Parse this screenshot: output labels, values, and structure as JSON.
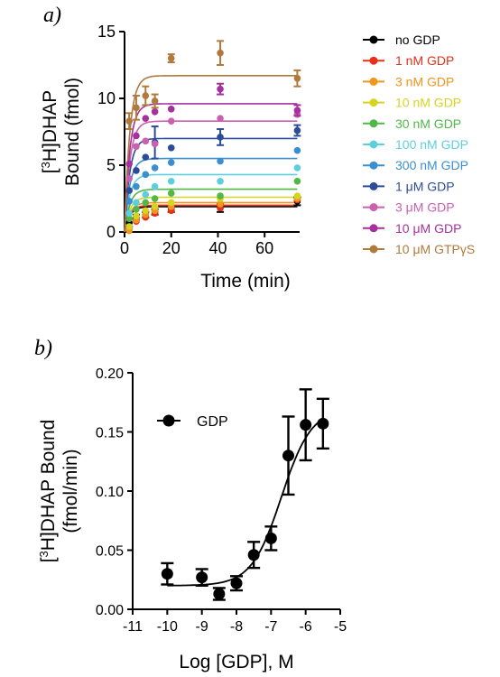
{
  "chart_data": [
    {
      "panel": "a)",
      "type": "scatter",
      "xlabel": "Time (min)",
      "ylabel": "[3H]DHAP Bound (fmol)",
      "ylabel_lines": [
        "[",
        "3",
        "H]DHAP",
        "Bound (fmol)"
      ],
      "xlim": [
        0,
        75
      ],
      "ylim": [
        0,
        15
      ],
      "xticks": [
        0,
        20,
        40,
        60
      ],
      "yticks": [
        0,
        5,
        10,
        15
      ],
      "grid": false,
      "legend_position": "right",
      "x": [
        2,
        5,
        9,
        13,
        20,
        41,
        74
      ],
      "series": [
        {
          "name": "no GDP",
          "color": "#000000",
          "values": [
            0.7,
            1.1,
            1.3,
            1.5,
            1.7,
            1.8,
            2.3
          ],
          "err": [
            0.3,
            0.2,
            0.2,
            0.2,
            0.2,
            0.3,
            0.3
          ],
          "plateau": 1.9
        },
        {
          "name": "1 nM GDP",
          "color": "#e8311a",
          "values": [
            0.3,
            0.8,
            1.1,
            1.4,
            1.6,
            1.8,
            2.4
          ],
          "plateau": 2.0
        },
        {
          "name": "3 nM GDP",
          "color": "#f2941d",
          "values": [
            0.1,
            0.9,
            1.3,
            1.6,
            1.9,
            2.1,
            2.5
          ],
          "plateau": 2.2
        },
        {
          "name": "10 nM GDP",
          "color": "#d6d41e",
          "values": [
            0.4,
            1.2,
            1.6,
            1.9,
            2.2,
            2.5,
            2.7
          ],
          "plateau": 2.6
        },
        {
          "name": "30 nM GDP",
          "color": "#51b848",
          "values": [
            1.0,
            1.7,
            2.2,
            2.5,
            2.9,
            2.7,
            3.8
          ],
          "plateau": 3.2
        },
        {
          "name": "100 nM GDP",
          "color": "#5ccfde",
          "values": [
            1.4,
            2.2,
            2.8,
            3.4,
            3.8,
            3.8,
            4.8
          ],
          "plateau": 4.3
        },
        {
          "name": "300 nM GDP",
          "color": "#3a8fd0",
          "values": [
            2.3,
            3.4,
            4.3,
            4.8,
            5.2,
            5.3,
            6.1
          ],
          "plateau": 5.5
        },
        {
          "name": "1 μM GDP",
          "color": "#2c4c9b",
          "values": [
            3.1,
            4.6,
            5.6,
            6.7,
            6.3,
            7.1,
            7.6
          ],
          "err": [
            0,
            0,
            0,
            1.2,
            0,
            0.6,
            0.4
          ],
          "plateau": 7.0
        },
        {
          "name": "3 μM GDP",
          "color": "#cb5fb0",
          "values": [
            4.0,
            6.4,
            6.8,
            6.6,
            8.3,
            8.5,
            8.8
          ],
          "plateau": 8.3
        },
        {
          "name": "10 μM GDP",
          "color": "#a6309e",
          "values": [
            5.1,
            7.2,
            8.5,
            9.0,
            9.2,
            10.7,
            9.1
          ],
          "err": [
            0,
            0,
            0,
            0,
            0,
            0.4,
            0.4
          ],
          "plateau": 9.6
        },
        {
          "name": "10 μM GTPγS",
          "color": "#b07a3c",
          "values": [
            8.3,
            9.3,
            10.2,
            9.8,
            13.0,
            13.4,
            11.5
          ],
          "err": [
            0.6,
            0.9,
            0.7,
            0.5,
            0.3,
            0.9,
            0.6
          ],
          "plateau": 11.7
        }
      ]
    },
    {
      "panel": "b)",
      "type": "scatter",
      "xlabel": "Log [GDP], M",
      "ylabel": "[3H]DHAP Bound (fmol/min)",
      "ylabel_lines": [
        "[",
        "3",
        "H]DHAP Bound",
        "(fmol/min)"
      ],
      "xlim": [
        -11,
        -5
      ],
      "ylim": [
        0,
        0.2
      ],
      "xticks": [
        -11,
        -10,
        -9,
        -8,
        -7,
        -6,
        -5
      ],
      "yticks": [
        0.0,
        0.05,
        0.1,
        0.15,
        0.2
      ],
      "ytick_labels": [
        "0.00",
        "0.05",
        "0.10",
        "0.15",
        "0.20"
      ],
      "grid": false,
      "legend_position": "top-left",
      "series": [
        {
          "name": "GDP",
          "color": "#000000",
          "x": [
            -10,
            -9,
            -8.5,
            -8,
            -7.5,
            -7,
            -6.5,
            -6,
            -5.5
          ],
          "values": [
            0.03,
            0.027,
            0.013,
            0.022,
            0.046,
            0.06,
            0.13,
            0.156,
            0.157
          ],
          "err": [
            0.009,
            0.007,
            0.005,
            0.006,
            0.011,
            0.01,
            0.033,
            0.03,
            0.021
          ]
        }
      ],
      "fit": {
        "bottom": 0.02,
        "top": 0.17,
        "logEC50": -6.7
      }
    }
  ]
}
